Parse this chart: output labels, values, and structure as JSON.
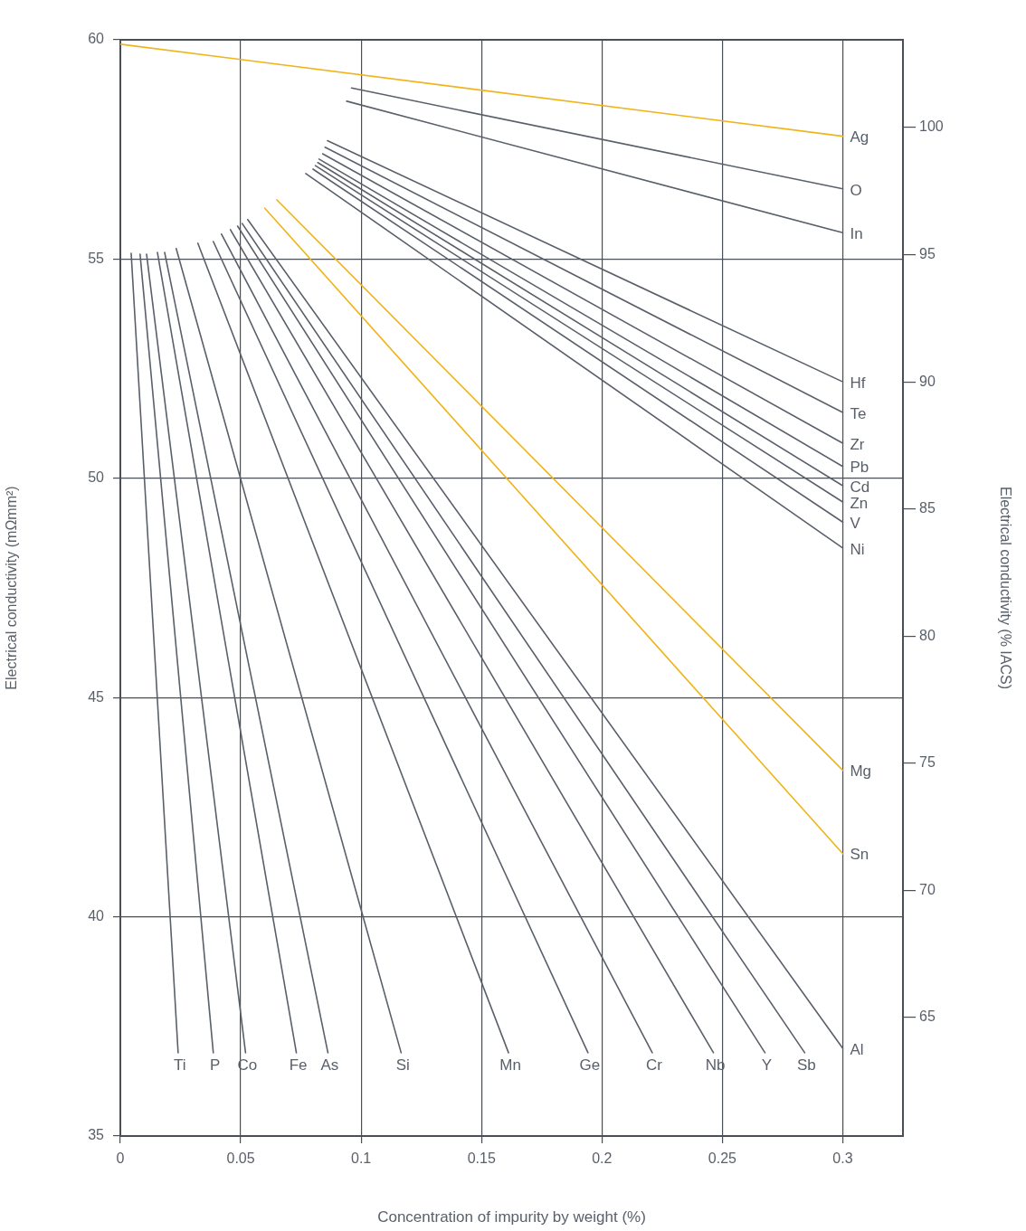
{
  "chart_data": {
    "type": "line",
    "xlabel": "Concentration of impurity by weight (%)",
    "ylabel": "Electrical conductivity (mΩmm²)",
    "y2label": "Electrical conductivity (% IACS)",
    "xlim": [
      0,
      0.325
    ],
    "xticks": [
      0,
      0.05,
      0.1,
      0.15,
      0.2,
      0.25,
      0.3
    ],
    "ylim": [
      35,
      60
    ],
    "yticks": [
      35,
      40,
      45,
      50,
      55,
      60
    ],
    "y2lim": [
      60.34,
      103.45
    ],
    "y2ticks": [
      65,
      70,
      75,
      80,
      85,
      90,
      95,
      100
    ],
    "grid": true,
    "legend": false,
    "marker": "none",
    "line_style": "solid",
    "series": [
      {
        "name": "Ag",
        "color": "#f0b419",
        "x": [
          0,
          0.3
        ],
        "values": [
          59.9,
          57.8
        ]
      },
      {
        "name": "O",
        "color": "#5a606a",
        "x": [
          0.096,
          0.3
        ],
        "values": [
          58.9,
          56.6
        ]
      },
      {
        "name": "In",
        "color": "#5a606a",
        "x": [
          0.094,
          0.3
        ],
        "values": [
          58.6,
          55.6
        ]
      },
      {
        "name": "Hf",
        "color": "#5a606a",
        "x": [
          0.086,
          0.3
        ],
        "values": [
          57.7,
          52.2
        ]
      },
      {
        "name": "Te",
        "color": "#5a606a",
        "x": [
          0.085,
          0.3
        ],
        "values": [
          57.55,
          51.5
        ]
      },
      {
        "name": "Zr",
        "color": "#5a606a",
        "x": [
          0.084,
          0.3
        ],
        "values": [
          57.4,
          50.8
        ]
      },
      {
        "name": "Pb",
        "color": "#5a606a",
        "x": [
          0.0825,
          0.3
        ],
        "values": [
          57.28,
          50.27
        ]
      },
      {
        "name": "Cd",
        "color": "#5a606a",
        "x": [
          0.082,
          0.3
        ],
        "values": [
          57.2,
          49.83
        ]
      },
      {
        "name": "Zn",
        "color": "#5a606a",
        "x": [
          0.081,
          0.3
        ],
        "values": [
          57.13,
          49.46
        ]
      },
      {
        "name": "V",
        "color": "#5a606a",
        "x": [
          0.08,
          0.3
        ],
        "values": [
          57.05,
          49.0
        ]
      },
      {
        "name": "Ni",
        "color": "#5a606a",
        "x": [
          0.077,
          0.3
        ],
        "values": [
          56.95,
          48.41
        ]
      },
      {
        "name": "Mg",
        "color": "#f0b419",
        "x": [
          0.065,
          0.3
        ],
        "values": [
          56.35,
          43.34
        ]
      },
      {
        "name": "Sn",
        "color": "#f0b419",
        "x": [
          0.06,
          0.3
        ],
        "values": [
          56.16,
          41.44
        ]
      },
      {
        "name": "Ti",
        "color": "#5a606a",
        "x": [
          0.0045,
          0.024
        ],
        "values": [
          55.13,
          36.9
        ]
      },
      {
        "name": "P",
        "color": "#5a606a",
        "x": [
          0.0082,
          0.0386
        ],
        "values": [
          55.11,
          36.9
        ]
      },
      {
        "name": "Co",
        "color": "#5a606a",
        "x": [
          0.0109,
          0.052
        ],
        "values": [
          55.11,
          36.9
        ]
      },
      {
        "name": "Fe",
        "color": "#5a606a",
        "x": [
          0.0154,
          0.0731
        ],
        "values": [
          55.15,
          36.9
        ]
      },
      {
        "name": "As",
        "color": "#5a606a",
        "x": [
          0.0184,
          0.0862
        ],
        "values": [
          55.15,
          36.9
        ]
      },
      {
        "name": "Si",
        "color": "#5a606a",
        "x": [
          0.0232,
          0.1166
        ],
        "values": [
          55.24,
          36.9
        ]
      },
      {
        "name": "Mn",
        "color": "#5a606a",
        "x": [
          0.0322,
          0.1612
        ],
        "values": [
          55.36,
          36.9
        ]
      },
      {
        "name": "Ge",
        "color": "#5a606a",
        "x": [
          0.0386,
          0.1942
        ],
        "values": [
          55.4,
          36.9
        ]
      },
      {
        "name": "Cr",
        "color": "#5a606a",
        "x": [
          0.042,
          0.2209
        ],
        "values": [
          55.57,
          36.9
        ]
      },
      {
        "name": "Nb",
        "color": "#5a606a",
        "x": [
          0.0457,
          0.2463
        ],
        "values": [
          55.67,
          36.9
        ]
      },
      {
        "name": "Y",
        "color": "#5a606a",
        "x": [
          0.0487,
          0.2677
        ],
        "values": [
          55.75,
          36.9
        ]
      },
      {
        "name": "Sb",
        "color": "#5a606a",
        "x": [
          0.0506,
          0.2842
        ],
        "values": [
          55.81,
          36.9
        ]
      },
      {
        "name": "Al",
        "color": "#5a606a",
        "x": [
          0.0529,
          0.3
        ],
        "values": [
          55.9,
          37.0
        ]
      }
    ]
  }
}
